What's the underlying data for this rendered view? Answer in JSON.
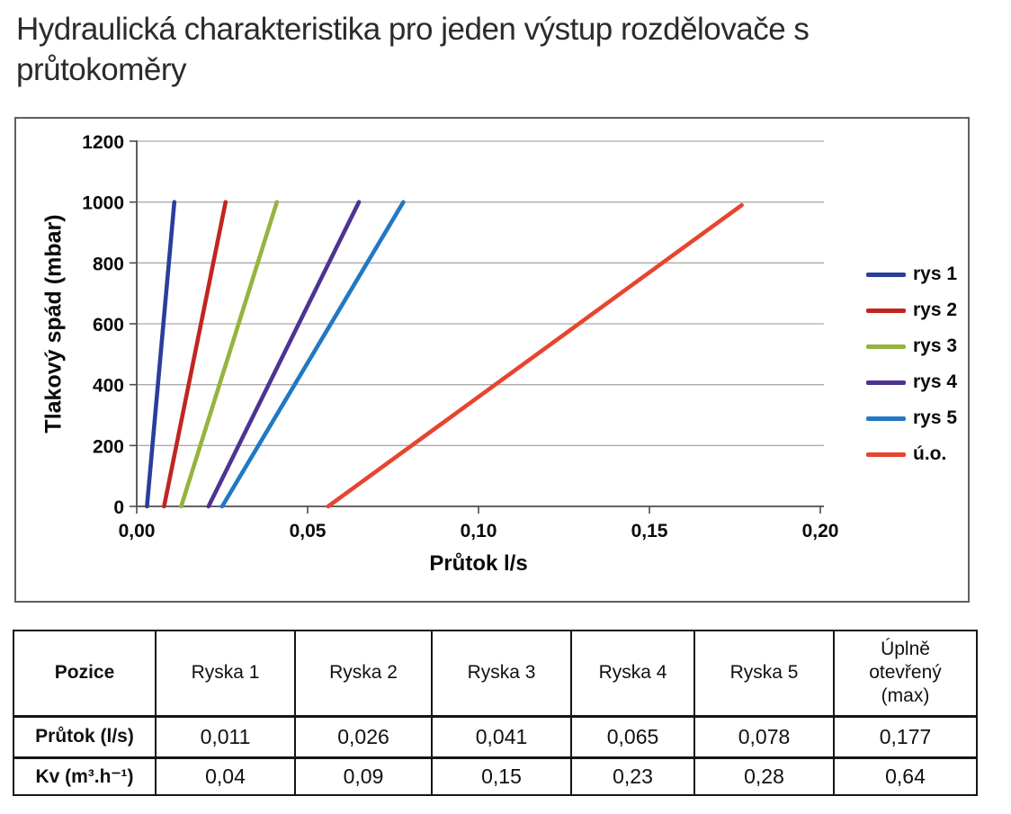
{
  "page_title": "Hydraulická charakteristika pro jeden výstup rozdělovače s průtokoměry",
  "chart_data": {
    "type": "line",
    "title": "",
    "xlabel": "Průtok l/s",
    "ylabel": "Tlakový spád (mbar)",
    "xlim": [
      0,
      0.2
    ],
    "ylim": [
      0,
      1200
    ],
    "xticks": [
      0,
      0.05,
      0.1,
      0.15,
      0.2
    ],
    "xtick_labels": [
      "0,00",
      "0,05",
      "0,10",
      "0,15",
      "0,20"
    ],
    "yticks": [
      0,
      200,
      400,
      600,
      800,
      1000,
      1200
    ],
    "ytick_labels": [
      "0",
      "200",
      "400",
      "600",
      "800",
      "1000",
      "1200"
    ],
    "grid": true,
    "gridline_color": "#ababab",
    "axis_color": "#4c4c4c",
    "legend_position": "right",
    "series": [
      {
        "name": "rys 1",
        "color": "#2A3E9C",
        "points": [
          [
            0.003,
            0
          ],
          [
            0.011,
            1000
          ]
        ]
      },
      {
        "name": "rys 2",
        "color": "#C22521",
        "points": [
          [
            0.008,
            0
          ],
          [
            0.026,
            1000
          ]
        ]
      },
      {
        "name": "rys 3",
        "color": "#95B43E",
        "points": [
          [
            0.013,
            0
          ],
          [
            0.041,
            1000
          ]
        ]
      },
      {
        "name": "rys 4",
        "color": "#4F3391",
        "points": [
          [
            0.021,
            0
          ],
          [
            0.065,
            1000
          ]
        ]
      },
      {
        "name": "rys 5",
        "color": "#2278C4",
        "points": [
          [
            0.025,
            0
          ],
          [
            0.078,
            1000
          ]
        ]
      },
      {
        "name": "ú.o.",
        "color": "#E64530",
        "points": [
          [
            0.056,
            0
          ],
          [
            0.177,
            990
          ]
        ]
      }
    ]
  },
  "table": {
    "col_headers": [
      "Pozice",
      "Ryska 1",
      "Ryska 2",
      "Ryska 3",
      "Ryska 4",
      "Ryska 5",
      "Úplně otevřený (max)"
    ],
    "rows": [
      {
        "label": "Průtok (l/s)",
        "values": [
          "0,011",
          "0,026",
          "0,041",
          "0,065",
          "0,078",
          "0,177"
        ]
      },
      {
        "label": "Kv (m³.h⁻¹)",
        "values": [
          "0,04",
          "0,09",
          "0,15",
          "0,23",
          "0,28",
          "0,64"
        ]
      }
    ]
  }
}
